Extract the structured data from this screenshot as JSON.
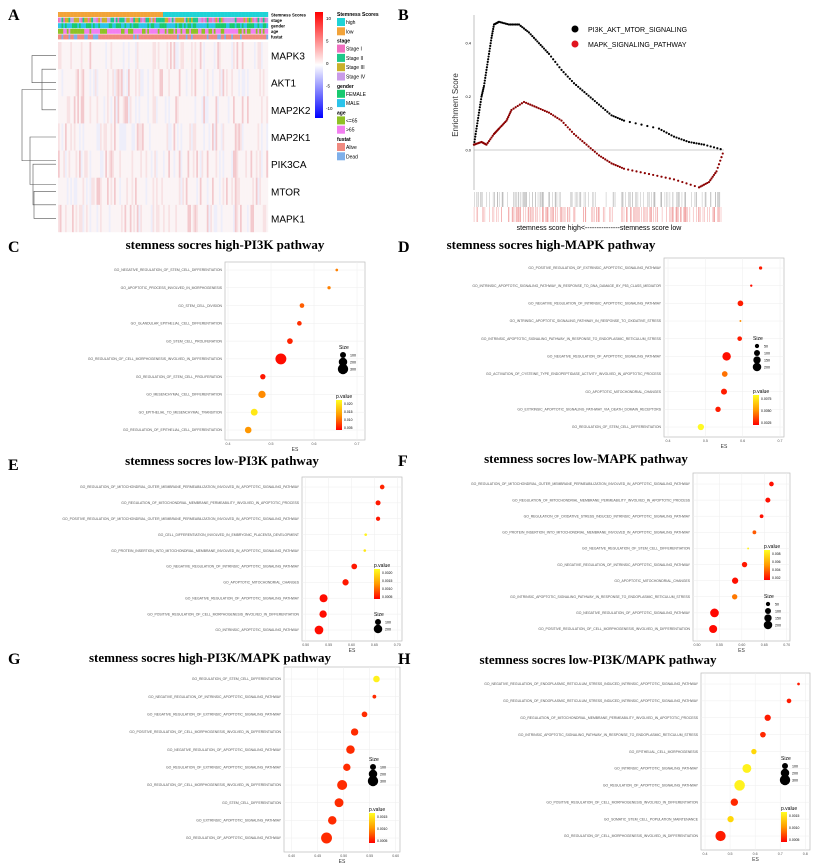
{
  "panel_letters": [
    "A",
    "B",
    "C",
    "D",
    "E",
    "F",
    "G",
    "H"
  ],
  "chart_data": [
    {
      "panel": "A",
      "type": "heatmap",
      "rows": [
        "MAPK3",
        "AKT1",
        "MAP2K2",
        "MAP2K1",
        "PIK3CA",
        "MTOR",
        "MAPK1"
      ],
      "annotation_tracks": [
        "Stemness Scores",
        "stage",
        "gender",
        "age",
        "fustat"
      ],
      "color_scale": {
        "min": -10,
        "max": 10,
        "ticks": [
          10,
          5,
          0,
          -5,
          -10
        ],
        "colors": [
          "#0000ff",
          "#ffffff",
          "#ff0000"
        ]
      },
      "legend": [
        {
          "title": "Stemness Scores",
          "items": [
            {
              "label": "high",
              "color": "#1fd3d6"
            },
            {
              "label": "low",
              "color": "#f2a33a"
            }
          ]
        },
        {
          "title": "stage",
          "items": [
            {
              "label": "Stage I",
              "color": "#f06fc0"
            },
            {
              "label": "Stage II",
              "color": "#1ec88a"
            },
            {
              "label": "Stage III",
              "color": "#c9b12a"
            },
            {
              "label": "Stage IV",
              "color": "#c99be8"
            }
          ]
        },
        {
          "title": "gender",
          "items": [
            {
              "label": "FEMALE",
              "color": "#18c96f"
            },
            {
              "label": "MALE",
              "color": "#2bc3ea"
            }
          ]
        },
        {
          "title": "age",
          "items": [
            {
              "label": "<=65",
              "color": "#8fc125"
            },
            {
              "label": ">65",
              "color": "#f27ff0"
            }
          ]
        },
        {
          "title": "fustat",
          "items": [
            {
              "label": "Alive",
              "color": "#f08a80"
            },
            {
              "label": "Dead",
              "color": "#7fb0ea"
            }
          ]
        }
      ]
    },
    {
      "panel": "B",
      "type": "line",
      "ylabel": "Enrichment Score",
      "xlabel": "stemness score high<---------------stemness score low",
      "yticks": [
        "0.4",
        "0.2",
        "0.0"
      ],
      "ylim": [
        -0.15,
        0.5
      ],
      "series": [
        {
          "name": "PI3K_AKT_MTOR_SIGNALING",
          "color": "#000000",
          "points": [
            [
              0,
              0.02
            ],
            [
              0.01,
              0.08
            ],
            [
              0.02,
              0.14
            ],
            [
              0.03,
              0.2
            ],
            [
              0.04,
              0.24
            ],
            [
              0.05,
              0.3
            ],
            [
              0.06,
              0.36
            ],
            [
              0.07,
              0.42
            ],
            [
              0.08,
              0.47
            ],
            [
              0.1,
              0.48
            ],
            [
              0.14,
              0.47
            ],
            [
              0.18,
              0.47
            ],
            [
              0.22,
              0.44
            ],
            [
              0.26,
              0.4
            ],
            [
              0.3,
              0.36
            ],
            [
              0.35,
              0.3
            ],
            [
              0.4,
              0.25
            ],
            [
              0.45,
              0.21
            ],
            [
              0.5,
              0.17
            ],
            [
              0.55,
              0.13
            ],
            [
              0.6,
              0.11
            ],
            [
              0.74,
              0.08
            ],
            [
              0.8,
              0.05
            ],
            [
              0.86,
              0.03
            ],
            [
              0.92,
              0.02
            ],
            [
              1.0,
              0.0
            ]
          ]
        },
        {
          "name": "MAPK_SIGNALING_PATHWAY",
          "color": "#8b0000",
          "points": [
            [
              0,
              0.02
            ],
            [
              0.03,
              0.03
            ],
            [
              0.05,
              0.02
            ],
            [
              0.08,
              0.06
            ],
            [
              0.1,
              0.08
            ],
            [
              0.13,
              0.11
            ],
            [
              0.15,
              0.15
            ],
            [
              0.2,
              0.18
            ],
            [
              0.25,
              0.16
            ],
            [
              0.3,
              0.14
            ],
            [
              0.35,
              0.11
            ],
            [
              0.4,
              0.06
            ],
            [
              0.45,
              0.02
            ],
            [
              0.5,
              -0.02
            ],
            [
              0.55,
              -0.05
            ],
            [
              0.6,
              -0.07
            ],
            [
              0.7,
              -0.09
            ],
            [
              0.8,
              -0.11
            ],
            [
              0.9,
              -0.14
            ],
            [
              0.94,
              -0.12
            ],
            [
              0.97,
              -0.08
            ],
            [
              1.0,
              0.0
            ]
          ]
        }
      ]
    },
    {
      "panel": "C",
      "type": "scatter",
      "title": "stemness socres high-PI3K pathway",
      "xlabel": "ES",
      "xticks": [
        0.4,
        0.5,
        0.6,
        0.7
      ],
      "xlim": [
        0.4,
        0.7
      ],
      "size_legend": [
        100,
        200,
        300
      ],
      "pvalue_ticks": [
        "0.020",
        "0.015",
        "0.010",
        "0.005"
      ],
      "pvalue_max": 0.022,
      "terms": [
        "GO_NEGATIVE_REGULATION_OF_STEM_CELL_DIFFERENTIATION",
        "GO_APOPTOTIC_PROCESS_INVOLVED_IN_MORPHOGENESIS",
        "GO_STEM_CELL_DIVISION",
        "GO_GLANDULAR_EPITHELIAL_CELL_DIFFERENTIATION",
        "GO_STEM_CELL_PROLIFERATION",
        "GO_REGULATION_OF_CELL_MORPHOGENESIS_INVOLVED_IN_DIFFERENTIATION",
        "GO_REGULATION_OF_STEM_CELL_PROLIFERATION",
        "GO_MESENCHYMAL_CELL_DIFFERENTIATION",
        "GO_EPITHELIAL_TO_MESENCHYMAL_TRANSITION",
        "GO_REGULATION_OF_EPITHELIAL_CELL_DIFFERENTIATION"
      ],
      "es": [
        0.653,
        0.635,
        0.572,
        0.566,
        0.544,
        0.523,
        0.481,
        0.479,
        0.461,
        0.447
      ],
      "size": [
        20,
        30,
        60,
        60,
        90,
        330,
        80,
        150,
        130,
        120
      ],
      "pvalue": [
        0.011,
        0.011,
        0.008,
        0.004,
        0.003,
        0.001,
        0.002,
        0.012,
        0.02,
        0.013
      ]
    },
    {
      "panel": "D",
      "type": "scatter",
      "title": "stemness socres high-MAPK pathway",
      "xlabel": "ES",
      "xticks": [
        0.4,
        0.5,
        0.6,
        0.7
      ],
      "xlim": [
        0.4,
        0.7
      ],
      "size_legend": [
        50,
        100,
        150,
        200
      ],
      "pvalue_ticks": [
        "0.0075",
        "0.0050",
        "0.0025"
      ],
      "pvalue_max": 0.009,
      "terms": [
        "GO_POSITIVE_REGULATION_OF_EXTRINSIC_APOPTOTIC_SIGNALING_PATHWAY",
        "GO_INTRINSIC_APOPTOTIC_SIGNALING_PATHWAY_IN_RESPONSE_TO_DNA_DAMAGE_BY_P53_CLASS_MEDIATOR",
        "GO_NEGATIVE_REGULATION_OF_INTRINSIC_APOPTOTIC_SIGNALING_PATHWAY",
        "GO_INTRINSIC_APOPTOTIC_SIGNALING_PATHWAY_IN_RESPONSE_TO_OXIDATIVE_STRESS",
        "GO_INTRINSIC_APOPTOTIC_SIGNALING_PATHWAY_IN_RESPONSE_TO_ENDOPLASMIC_RETICULUM_STRESS",
        "GO_NEGATIVE_REGULATION_OF_APOPTOTIC_SIGNALING_PATHWAY",
        "GO_ACTIVATION_OF_CYSTEINE_TYPE_ENDOPEPTIDASE_ACTIVITY_INVOLVED_IN_APOPTOTIC_PROCESS",
        "GO_APOPTOTIC_MITOCHONDRIAL_CHANGES",
        "GO_EXTRINSIC_APOPTOTIC_SIGNALING_PATHWAY_VIA_DEATH_DOMAIN_RECEPTORS",
        "GO_REGULATION_OF_STEM_CELL_DIFFERENTIATION"
      ],
      "es": [
        0.648,
        0.623,
        0.594,
        0.594,
        0.592,
        0.557,
        0.552,
        0.55,
        0.534,
        0.488
      ],
      "size": [
        30,
        15,
        90,
        10,
        60,
        200,
        90,
        100,
        80,
        110
      ],
      "pvalue": [
        0.001,
        0.0005,
        0.001,
        0.005,
        0.001,
        0.0005,
        0.004,
        0.001,
        0.001,
        0.0088
      ]
    },
    {
      "panel": "E",
      "type": "scatter",
      "title": "stemness socres low-PI3K pathway",
      "xlabel": "ES",
      "xticks": [
        "0.50",
        "0.55",
        "0.60",
        "0.65",
        "0.70"
      ],
      "xlim": [
        0.5,
        0.7
      ],
      "size_legend": [
        100,
        200
      ],
      "pvalue_ticks": [
        "0.0020",
        "0.0015",
        "0.0010",
        "0.0005"
      ],
      "pvalue_max": 0.0021,
      "terms": [
        "GO_REGULATION_OF_MITOCHONDRIAL_OUTER_MEMBRANE_PERMEABILIZATION_INVOLVED_IN_APOPTOTIC_SIGNALING_PATHWAY",
        "GO_REGULATION_OF_MITOCHONDRIAL_MEMBRANE_PERMEABILITY_INVOLVED_IN_APOPTOTIC_PROCESS",
        "GO_POSITIVE_REGULATION_OF_MITOCHONDRIAL_OUTER_MEMBRANE_PERMEABILIZATION_INVOLVED_IN_APOPTOTIC_SIGNALING_PATHWAY",
        "GO_CELL_DIFFERENTIATION_INVOLVED_IN_EMBRYONIC_PLACENTA_DEVELOPMENT",
        "GO_PROTEIN_INSERTION_INTO_MITOCHONDRIAL_MEMBRANE_INVOLVED_IN_APOPTOTIC_SIGNALING_PATHWAY",
        "GO_NEGATIVE_REGULATION_OF_INTRINSIC_APOPTOTIC_SIGNALING_PATHWAY",
        "GO_APOPTOTIC_MITOCHONDRIAL_CHANGES",
        "GO_NEGATIVE_REGULATION_OF_APOPTOTIC_SIGNALING_PATHWAY",
        "GO_POSITIVE_REGULATION_OF_CELL_MORPHOGENESIS_INVOLVED_IN_DIFFERENTIATION",
        "GO_INTRINSIC_APOPTOTIC_SIGNALING_PATHWAY"
      ],
      "es": [
        0.667,
        0.658,
        0.658,
        0.631,
        0.629,
        0.606,
        0.587,
        0.539,
        0.538,
        0.529
      ],
      "size": [
        60,
        70,
        50,
        20,
        20,
        90,
        110,
        180,
        150,
        210
      ],
      "pvalue": [
        0.0003,
        0.0002,
        0.0002,
        0.002,
        0.0019,
        0.0002,
        0.0002,
        0.0001,
        0.0001,
        0.0001
      ]
    },
    {
      "panel": "F",
      "type": "scatter",
      "title": "stemness socres low-MAPK pathway",
      "xlabel": "ES",
      "xticks": [
        "0.50",
        "0.55",
        "0.60",
        "0.65",
        "0.70"
      ],
      "xlim": [
        0.5,
        0.7
      ],
      "size_legend": [
        50,
        100,
        150,
        200
      ],
      "pvalue_ticks": [
        "0.008",
        "0.006",
        "0.004",
        "0.002"
      ],
      "pvalue_max": 0.0085,
      "terms": [
        "GO_REGULATION_OF_MITOCHONDRIAL_OUTER_MEMBRANE_PERMEABILIZATION_INVOLVED_IN_APOPTOTIC_SIGNALING_PATHWAY",
        "GO_REGULATION_OF_MITOCHONDRIAL_MEMBRANE_PERMEABILITY_INVOLVED_IN_APOPTOTIC_PROCESS",
        "GO_REGULATION_OF_OXIDATIVE_STRESS_INDUCED_INTRINSIC_APOPTOTIC_SIGNALING_PATHWAY",
        "GO_PROTEIN_INSERTION_INTO_MITOCHONDRIAL_MEMBRANE_INVOLVED_IN_APOPTOTIC_SIGNALING_PATHWAY",
        "GO_NEGATIVE_REGULATION_OF_STEM_CELL_DIFFERENTIATION",
        "GO_NEGATIVE_REGULATION_OF_INTRINSIC_APOPTOTIC_SIGNALING_PATHWAY",
        "GO_APOPTOTIC_MITOCHONDRIAL_CHANGES",
        "GO_INTRINSIC_APOPTOTIC_SIGNALING_PATHWAY_IN_RESPONSE_TO_ENDOPLASMIC_RETICULUM_STRESS",
        "GO_NEGATIVE_REGULATION_OF_APOPTOTIC_SIGNALING_PATHWAY",
        "GO_POSITIVE_REGULATION_OF_CELL_MORPHOGENESIS_INVOLVED_IN_DIFFERENTIATION"
      ],
      "es": [
        0.666,
        0.658,
        0.644,
        0.628,
        0.614,
        0.606,
        0.585,
        0.584,
        0.539,
        0.536
      ],
      "size": [
        60,
        70,
        40,
        40,
        10,
        80,
        110,
        80,
        210,
        180
      ],
      "pvalue": [
        0.0005,
        0.0005,
        0.0005,
        0.003,
        0.008,
        0.0008,
        0.0005,
        0.004,
        0.0002,
        0.0003
      ]
    },
    {
      "panel": "G",
      "type": "scatter",
      "title": "stemness socres high-PI3K/MAPK pathway",
      "xlabel": "ES",
      "xticks": [
        "0.40",
        "0.45",
        "0.50",
        "0.55",
        "0.60"
      ],
      "xlim": [
        0.4,
        0.6
      ],
      "size_legend": [
        100,
        200,
        300
      ],
      "pvalue_ticks": [
        "0.0015",
        "0.0010",
        "0.0005"
      ],
      "pvalue_max": 0.0018,
      "terms": [
        "GO_REGULATION_OF_STEM_CELL_DIFFERENTIATION",
        "GO_NEGATIVE_REGULATION_OF_INTRINSIC_APOPTOTIC_SIGNALING_PATHWAY",
        "GO_NEGATIVE_REGULATION_OF_EXTRINSIC_APOPTOTIC_SIGNALING_PATHWAY",
        "GO_POSITIVE_REGULATION_OF_CELL_MORPHOGENESIS_INVOLVED_IN_DIFFERENTIATION",
        "GO_NEGATIVE_REGULATION_OF_APOPTOTIC_SIGNALING_PATHWAY",
        "GO_REGULATION_OF_EXTRINSIC_APOPTOTIC_SIGNALING_PATHWAY",
        "GO_REGULATION_OF_CELL_MORPHOGENESIS_INVOLVED_IN_DIFFERENTIATION",
        "GO_STEM_CELL_DIFFERENTIATION",
        "GO_EXTRINSIC_APOPTOTIC_SIGNALING_PATHWAY",
        "GO_REGULATION_OF_APOPTOTIC_SIGNALING_PATHWAY"
      ],
      "es": [
        0.563,
        0.559,
        0.54,
        0.521,
        0.513,
        0.506,
        0.497,
        0.491,
        0.478,
        0.467
      ],
      "size": [
        120,
        40,
        90,
        150,
        200,
        150,
        280,
        220,
        200,
        330
      ],
      "pvalue": [
        0.0017,
        0.0003,
        0.0003,
        0.0003,
        0.0003,
        0.0003,
        0.0003,
        0.0003,
        0.0003,
        0.0003
      ]
    },
    {
      "panel": "H",
      "type": "scatter",
      "title": "stemness socres low-PI3K/MAPK pathway",
      "xlabel": "ES",
      "xticks": [
        0.4,
        0.5,
        0.6,
        0.7,
        0.8
      ],
      "xlim": [
        0.4,
        0.8
      ],
      "size_legend": [
        100,
        200,
        300
      ],
      "pvalue_ticks": [
        "0.0015",
        "0.0010",
        "0.0005"
      ],
      "pvalue_max": 0.0019,
      "terms": [
        "GO_NEGATIVE_REGULATION_OF_ENDOPLASMIC_RETICULUM_STRESS_INDUCED_INTRINSIC_APOPTOTIC_SIGNALING_PATHWAY",
        "GO_REGULATION_OF_ENDOPLASMIC_RETICULUM_STRESS_INDUCED_INTRINSIC_APOPTOTIC_SIGNALING_PATHWAY",
        "GO_REGULATION_OF_MITOCHONDRIAL_MEMBRANE_PERMEABILITY_INVOLVED_IN_APOPTOTIC_PROCESS",
        "GO_INTRINSIC_APOPTOTIC_SIGNALING_PATHWAY_IN_RESPONSE_TO_ENDOPLASMIC_RETICULUM_STRESS",
        "GO_EPITHELIAL_CELL_MORPHOGENESIS",
        "GO_INTRINSIC_APOPTOTIC_SIGNALING_PATHWAY",
        "GO_REGULATION_OF_APOPTOTIC_SIGNALING_PATHWAY",
        "GO_POSITIVE_REGULATION_OF_CELL_MORPHOGENESIS_INVOLVED_IN_DIFFERENTIATION",
        "GO_SOMATIC_STEM_CELL_POPULATION_MAINTENANCE",
        "GO_REGULATION_OF_CELL_MORPHOGENESIS_INVOLVED_IN_DIFFERENTIATION"
      ],
      "es": [
        0.773,
        0.735,
        0.65,
        0.631,
        0.595,
        0.567,
        0.538,
        0.517,
        0.502,
        0.462
      ],
      "size": [
        20,
        60,
        110,
        90,
        80,
        220,
        310,
        150,
        110,
        290
      ],
      "pvalue": [
        0.0002,
        0.0002,
        0.0002,
        0.0003,
        0.0016,
        0.0018,
        0.0018,
        0.0003,
        0.0016,
        0.0002
      ]
    }
  ],
  "legend_titles": {
    "size": "Size",
    "pvalue": "p.value"
  }
}
